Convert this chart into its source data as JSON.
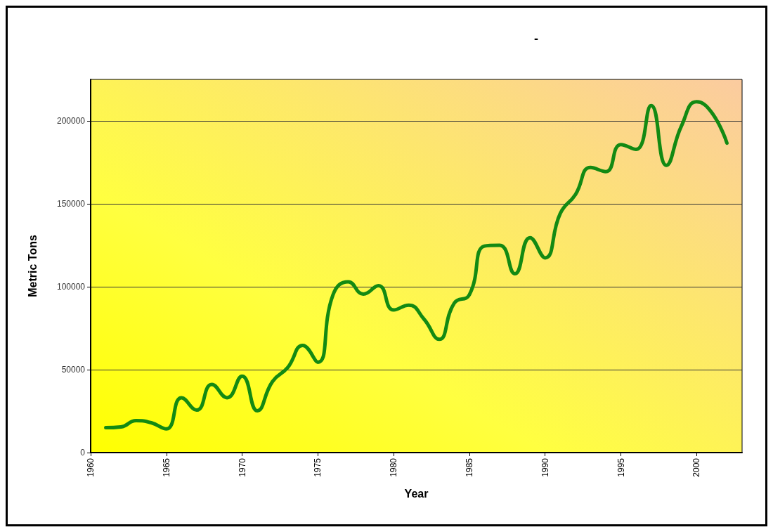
{
  "chart_data": {
    "type": "line",
    "title": "-",
    "xlabel": "Year",
    "ylabel": "Metric Tons",
    "x": [
      1961,
      1962,
      1963,
      1964,
      1965,
      1966,
      1967,
      1968,
      1969,
      1970,
      1971,
      1972,
      1973,
      1974,
      1975,
      1976,
      1977,
      1978,
      1979,
      1980,
      1981,
      1982,
      1983,
      1984,
      1985,
      1986,
      1987,
      1988,
      1989,
      1990,
      1991,
      1992,
      1993,
      1994,
      1995,
      1996,
      1997,
      1998,
      1999,
      2000,
      2001,
      2002
    ],
    "series": [
      {
        "color": "#138a13",
        "values": [
          15000,
          15500,
          19300,
          18000,
          14300,
          33100,
          25600,
          41100,
          33100,
          46100,
          25200,
          42800,
          51200,
          64600,
          54500,
          95200,
          103000,
          95600,
          100600,
          86000,
          88900,
          80500,
          68300,
          90100,
          95200,
          124500,
          125000,
          107800,
          129600,
          117400,
          144200,
          155600,
          171900,
          169400,
          185700,
          182800,
          209200,
          173200,
          197000,
          211500,
          205000,
          186600
        ]
      }
    ],
    "xlim": [
      1960,
      2003
    ],
    "xticks": [
      1960,
      1965,
      1970,
      1975,
      1980,
      1985,
      1990,
      1995,
      2000
    ],
    "ylim": [
      0,
      225000
    ],
    "yticks": [
      0,
      50000,
      100000,
      150000,
      200000
    ],
    "grid": "y",
    "marker": "none",
    "line_style": "solid"
  }
}
